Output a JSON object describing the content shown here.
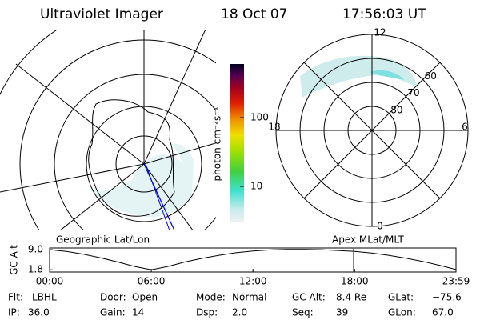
{
  "header": {
    "title": "Ultraviolet Imager",
    "date": "18 Oct 07",
    "time": "17:56:03 UT"
  },
  "geo_label": "Geographic Lat/Lon",
  "polar_label": "Apex MLat/MLT",
  "colorbar": {
    "label": "photon cm⁻²s⁻¹",
    "scale": "log",
    "clim": [
      3,
      600
    ],
    "ticks": [
      10,
      100
    ]
  },
  "polar_plot": {
    "rlim": [
      90,
      50
    ],
    "mlat_rings": [
      80,
      70,
      60
    ],
    "mlt_ticks": [
      12,
      6,
      0,
      18
    ]
  },
  "chart_data": {
    "type": "line",
    "ylabel": "GC Alt",
    "color": "#000000",
    "marker_color": "#cc0000",
    "x": [
      0,
      1,
      2,
      3,
      4,
      5,
      6,
      7,
      8,
      9,
      10,
      11,
      12,
      13,
      14,
      15,
      16,
      17,
      18,
      19,
      20,
      21,
      22,
      23,
      23.983
    ],
    "values": [
      9.0,
      8.4,
      7.4,
      6.1,
      4.6,
      3.0,
      1.8,
      3.0,
      4.6,
      5.9,
      7.0,
      7.9,
      8.5,
      8.9,
      9.1,
      9.1,
      9.0,
      8.7,
      8.4,
      7.8,
      7.0,
      6.0,
      4.8,
      3.4,
      1.9
    ],
    "xlim": [
      0,
      23.983
    ],
    "ylim": [
      1.0,
      9.6
    ],
    "xticks": [
      {
        "value": 0,
        "label": "00:00"
      },
      {
        "value": 6,
        "label": "06:00"
      },
      {
        "value": 12,
        "label": "12:00"
      },
      {
        "value": 18,
        "label": "18:00"
      },
      {
        "value": 23.983,
        "label": "23:59"
      }
    ],
    "yticks": [
      {
        "value": 9.0,
        "label": "9.0"
      },
      {
        "value": 1.8,
        "label": "1.8"
      }
    ],
    "current_time": 17.934
  },
  "info": [
    [
      [
        "Flt:",
        "LBHL"
      ],
      [
        "Door:",
        "Open"
      ],
      [
        "Mode:",
        "Normal"
      ],
      [
        "GC Alt:",
        "8.4 Re"
      ],
      [
        "GLat:",
        "−75.6"
      ]
    ],
    [
      [
        "IP:",
        "36.0"
      ],
      [
        "Gain:",
        "14"
      ],
      [
        "Dsp:",
        "2.0"
      ],
      [
        "Seq:",
        "39"
      ],
      [
        "GLon:",
        "67.0"
      ]
    ]
  ]
}
